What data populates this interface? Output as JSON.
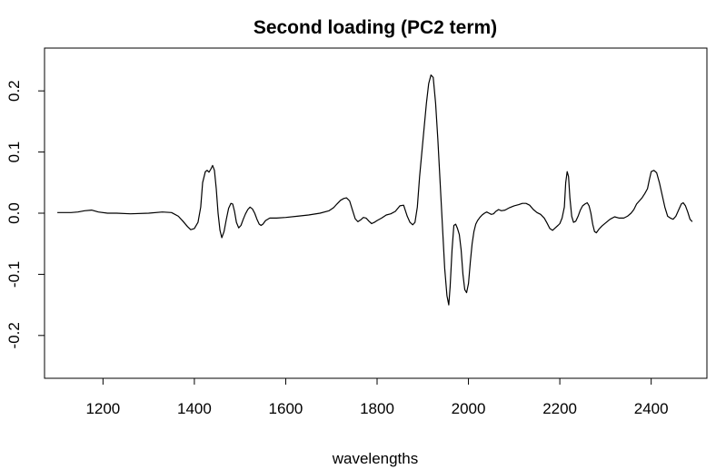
{
  "chart_data": {
    "type": "line",
    "title": "Second loading (PC2 term)",
    "xlabel": "wavelengths",
    "ylabel": "",
    "xlim": [
      1072,
      2522
    ],
    "ylim": [
      -0.27,
      0.27
    ],
    "xticks": [
      1200,
      1400,
      1600,
      1800,
      2000,
      2200,
      2400
    ],
    "xtick_labels": [
      "1200",
      "1400",
      "1600",
      "1800",
      "2000",
      "2200",
      "2400"
    ],
    "yticks": [
      -0.2,
      -0.1,
      0.0,
      0.1,
      0.2
    ],
    "ytick_labels": [
      "-0.2",
      "-0.1",
      "0.0",
      "0.1",
      "0.2"
    ],
    "grid": false,
    "line_color": "#000000",
    "series": [
      {
        "x": [
          1100,
          1130,
          1145,
          1160,
          1175,
          1190,
          1210,
          1230,
          1260,
          1300,
          1330,
          1350,
          1365,
          1375,
          1385,
          1392,
          1400,
          1408,
          1414,
          1418,
          1424,
          1428,
          1432,
          1436,
          1440,
          1444,
          1448,
          1452,
          1456,
          1460,
          1465,
          1470,
          1475,
          1480,
          1484,
          1488,
          1492,
          1497,
          1502,
          1507,
          1512,
          1517,
          1522,
          1527,
          1532,
          1537,
          1542,
          1546,
          1550,
          1556,
          1565,
          1580,
          1600,
          1625,
          1650,
          1675,
          1695,
          1705,
          1712,
          1720,
          1727,
          1733,
          1740,
          1746,
          1752,
          1758,
          1764,
          1770,
          1776,
          1782,
          1788,
          1794,
          1800,
          1810,
          1820,
          1830,
          1840,
          1850,
          1858,
          1866,
          1872,
          1878,
          1883,
          1888,
          1893,
          1898,
          1903,
          1908,
          1913,
          1918,
          1923,
          1928,
          1933,
          1938,
          1943,
          1948,
          1953,
          1957,
          1960,
          1964,
          1968,
          1972,
          1976,
          1980,
          1984,
          1988,
          1992,
          1996,
          2000,
          2004,
          2008,
          2012,
          2016,
          2020,
          2025,
          2030,
          2035,
          2040,
          2045,
          2050,
          2055,
          2060,
          2066,
          2072,
          2080,
          2090,
          2100,
          2110,
          2118,
          2126,
          2134,
          2142,
          2150,
          2158,
          2166,
          2172,
          2178,
          2184,
          2190,
          2196,
          2200,
          2205,
          2210,
          2213,
          2216,
          2219,
          2222,
          2226,
          2230,
          2235,
          2240,
          2245,
          2250,
          2255,
          2260,
          2264,
          2268,
          2272,
          2276,
          2280,
          2286,
          2292,
          2300,
          2310,
          2320,
          2330,
          2340,
          2348,
          2356,
          2362,
          2368,
          2374,
          2380,
          2386,
          2392,
          2396,
          2400,
          2406,
          2412,
          2418,
          2424,
          2430,
          2436,
          2442,
          2448,
          2454,
          2460,
          2466,
          2470,
          2475,
          2480,
          2485,
          2490
        ],
        "y": [
          0.001,
          0.001,
          0.002,
          0.004,
          0.005,
          0.002,
          0.0,
          0.0,
          -0.001,
          0.0,
          0.002,
          0.001,
          -0.005,
          -0.013,
          -0.022,
          -0.027,
          -0.025,
          -0.015,
          0.01,
          0.05,
          0.068,
          0.07,
          0.067,
          0.072,
          0.078,
          0.07,
          0.04,
          0.0,
          -0.028,
          -0.04,
          -0.03,
          -0.01,
          0.008,
          0.016,
          0.015,
          0.003,
          -0.015,
          -0.024,
          -0.02,
          -0.01,
          -0.001,
          0.006,
          0.01,
          0.007,
          0.0,
          -0.01,
          -0.018,
          -0.02,
          -0.018,
          -0.012,
          -0.008,
          -0.008,
          -0.007,
          -0.005,
          -0.003,
          0.0,
          0.004,
          0.009,
          0.015,
          0.021,
          0.024,
          0.025,
          0.02,
          0.005,
          -0.009,
          -0.014,
          -0.011,
          -0.007,
          -0.008,
          -0.013,
          -0.017,
          -0.015,
          -0.012,
          -0.008,
          -0.003,
          -0.001,
          0.003,
          0.012,
          0.013,
          -0.005,
          -0.015,
          -0.019,
          -0.015,
          0.01,
          0.06,
          0.1,
          0.14,
          0.18,
          0.212,
          0.226,
          0.222,
          0.18,
          0.12,
          0.05,
          -0.02,
          -0.09,
          -0.135,
          -0.15,
          -0.12,
          -0.06,
          -0.02,
          -0.018,
          -0.025,
          -0.035,
          -0.06,
          -0.1,
          -0.125,
          -0.13,
          -0.115,
          -0.08,
          -0.05,
          -0.03,
          -0.018,
          -0.012,
          -0.007,
          -0.003,
          0.0,
          0.002,
          0.0,
          -0.002,
          -0.001,
          0.003,
          0.006,
          0.004,
          0.005,
          0.009,
          0.012,
          0.014,
          0.016,
          0.016,
          0.013,
          0.006,
          0.001,
          -0.002,
          -0.008,
          -0.016,
          -0.025,
          -0.028,
          -0.024,
          -0.02,
          -0.017,
          -0.008,
          0.01,
          0.05,
          0.068,
          0.06,
          0.025,
          -0.005,
          -0.015,
          -0.013,
          -0.005,
          0.005,
          0.012,
          0.015,
          0.017,
          0.012,
          0.0,
          -0.018,
          -0.03,
          -0.032,
          -0.026,
          -0.021,
          -0.016,
          -0.01,
          -0.006,
          -0.008,
          -0.008,
          -0.005,
          0.0,
          0.006,
          0.015,
          0.02,
          0.025,
          0.032,
          0.04,
          0.055,
          0.068,
          0.07,
          0.066,
          0.05,
          0.03,
          0.01,
          -0.005,
          -0.008,
          -0.01,
          -0.005,
          0.005,
          0.015,
          0.017,
          0.012,
          0.002,
          -0.01,
          -0.014
        ]
      }
    ]
  }
}
